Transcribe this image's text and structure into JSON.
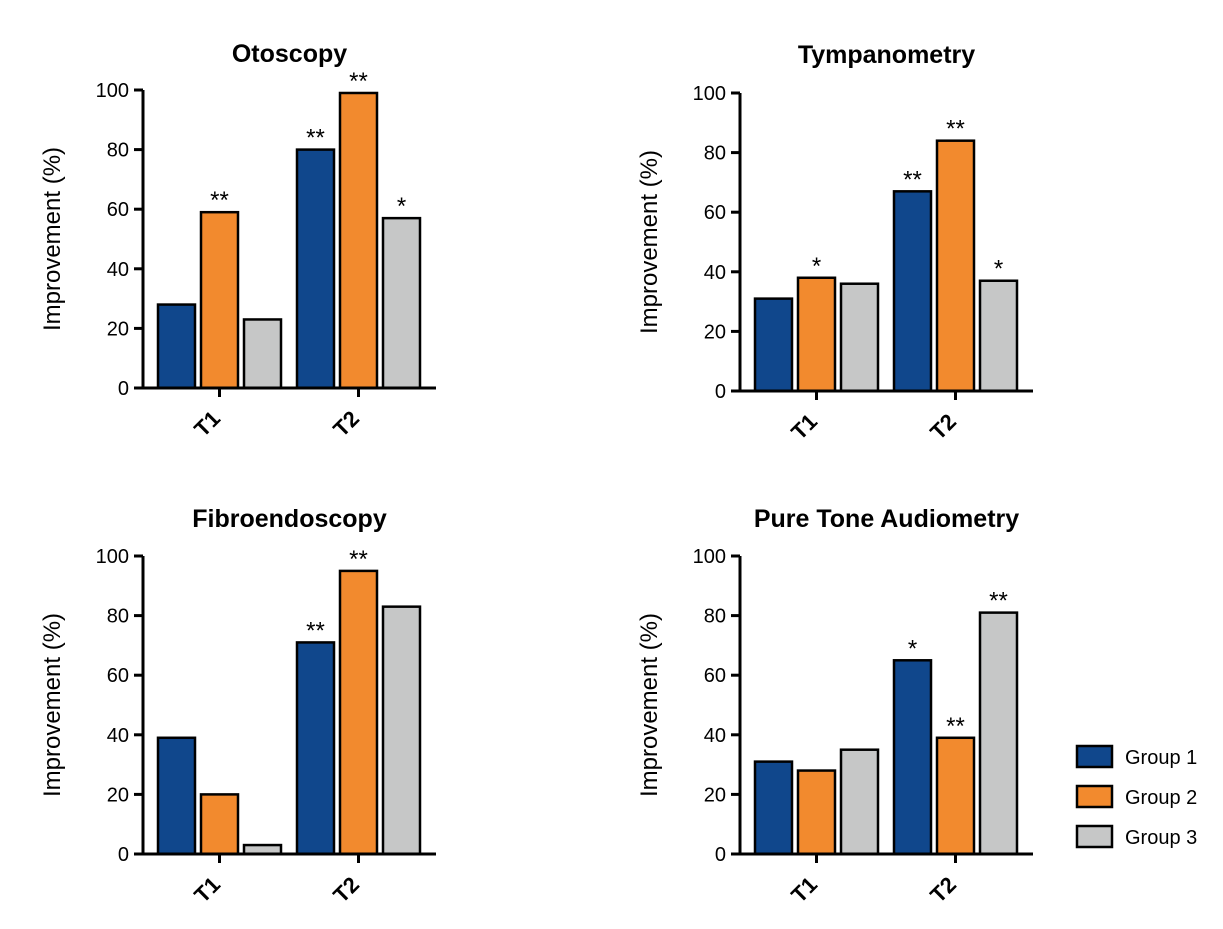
{
  "colors": {
    "group1": "#10478c",
    "group2": "#f28a2e",
    "group3": "#c6c7c7"
  },
  "chart_data": [
    {
      "type": "bar",
      "title": "Otoscopy",
      "ylabel": "Improvement (%)",
      "ylim": [
        0,
        100
      ],
      "yticks": [
        "0",
        "20",
        "40",
        "60",
        "80",
        "100"
      ],
      "categories": [
        "T1",
        "T2"
      ],
      "series": [
        {
          "name": "Group 1",
          "values": [
            28,
            80
          ],
          "stars": [
            "",
            "**"
          ]
        },
        {
          "name": "Group 2",
          "values": [
            59,
            99
          ],
          "stars": [
            "**",
            "**"
          ]
        },
        {
          "name": "Group 3",
          "values": [
            23,
            57
          ],
          "stars": [
            "",
            "*"
          ]
        }
      ]
    },
    {
      "type": "bar",
      "title": "Tympanometry",
      "ylabel": "Improvement (%)",
      "ylim": [
        0,
        100
      ],
      "yticks": [
        "0",
        "20",
        "40",
        "60",
        "80",
        "100"
      ],
      "categories": [
        "T1",
        "T2"
      ],
      "series": [
        {
          "name": "Group 1",
          "values": [
            31,
            67
          ],
          "stars": [
            "",
            "**"
          ]
        },
        {
          "name": "Group 2",
          "values": [
            38,
            84
          ],
          "stars": [
            "*",
            "**"
          ]
        },
        {
          "name": "Group 3",
          "values": [
            36,
            37
          ],
          "stars": [
            "",
            "*"
          ]
        }
      ]
    },
    {
      "type": "bar",
      "title": "Fibroendoscopy",
      "ylabel": "Improvement (%)",
      "ylim": [
        0,
        100
      ],
      "yticks": [
        "0",
        "20",
        "40",
        "60",
        "80",
        "100"
      ],
      "categories": [
        "T1",
        "T2"
      ],
      "series": [
        {
          "name": "Group 1",
          "values": [
            39,
            71
          ],
          "stars": [
            "",
            "**"
          ]
        },
        {
          "name": "Group 2",
          "values": [
            20,
            95
          ],
          "stars": [
            "",
            "**"
          ]
        },
        {
          "name": "Group 3",
          "values": [
            3,
            83
          ],
          "stars": [
            "",
            ""
          ]
        }
      ]
    },
    {
      "type": "bar",
      "title": "Pure Tone Audiometry",
      "ylabel": "Improvement (%)",
      "ylim": [
        0,
        100
      ],
      "yticks": [
        "0",
        "20",
        "40",
        "60",
        "80",
        "100"
      ],
      "categories": [
        "T1",
        "T2"
      ],
      "series": [
        {
          "name": "Group 1",
          "values": [
            31,
            65
          ],
          "stars": [
            "",
            "*"
          ]
        },
        {
          "name": "Group 2",
          "values": [
            28,
            39
          ],
          "stars": [
            "",
            "**"
          ]
        },
        {
          "name": "Group 3",
          "values": [
            35,
            81
          ],
          "stars": [
            "",
            "**"
          ]
        }
      ]
    }
  ],
  "legend": {
    "placement": "right",
    "entries": [
      "Group 1",
      "Group 2",
      "Group 3"
    ]
  }
}
